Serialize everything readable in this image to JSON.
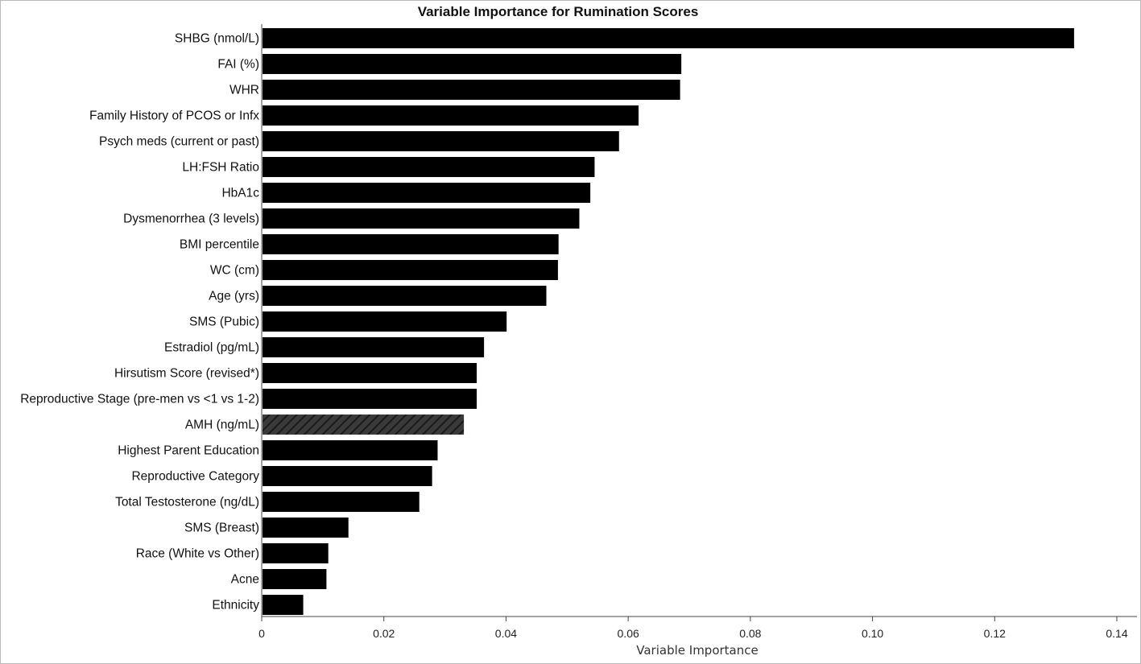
{
  "chart_data": {
    "type": "bar",
    "orientation": "horizontal",
    "title": "Variable Importance for Rumination Scores",
    "xlabel": "Variable Importance",
    "ylabel": "",
    "xlim": [
      0,
      0.14
    ],
    "xticks": [
      0,
      0.02,
      0.04,
      0.06,
      0.08,
      0.1,
      0.12,
      0.14
    ],
    "xtick_labels": [
      "0",
      "0.02",
      "0.04",
      "0.06",
      "0.08",
      "0.10",
      "0.12",
      "0.14"
    ],
    "grid": false,
    "bar_color": "#000000",
    "hatched_bar_color": "#3a3a3a",
    "categories": [
      "SHBG (nmol/L)",
      "FAI (%)",
      "WHR",
      "Family History of PCOS or Infx",
      "Psych meds (current or past)",
      "LH:FSH Ratio",
      "HbA1c",
      "Dysmenorrhea (3 levels)",
      "BMI percentile",
      "WC (cm)",
      "Age (yrs)",
      "SMS (Pubic)",
      "Estradiol (pg/mL)",
      "Hirsutism Score (revised*)",
      "Reproductive Stage (pre-men vs <1 vs 1-2)",
      "AMH (ng/mL)",
      "Highest Parent Education",
      "Reproductive Category",
      "Total Testosterone (ng/dL)",
      "SMS (Breast)",
      "Race (White vs Other)",
      "Acne",
      "Ethnicity"
    ],
    "values": [
      0.133,
      0.0687,
      0.0685,
      0.0617,
      0.0585,
      0.0545,
      0.0538,
      0.052,
      0.0486,
      0.0485,
      0.0466,
      0.0401,
      0.0364,
      0.0352,
      0.0352,
      0.0331,
      0.0288,
      0.0279,
      0.0258,
      0.0142,
      0.0109,
      0.0106,
      0.0068
    ],
    "hatched": [
      false,
      false,
      false,
      false,
      false,
      false,
      false,
      false,
      false,
      false,
      false,
      false,
      false,
      false,
      false,
      true,
      false,
      false,
      false,
      false,
      false,
      false,
      false
    ]
  }
}
